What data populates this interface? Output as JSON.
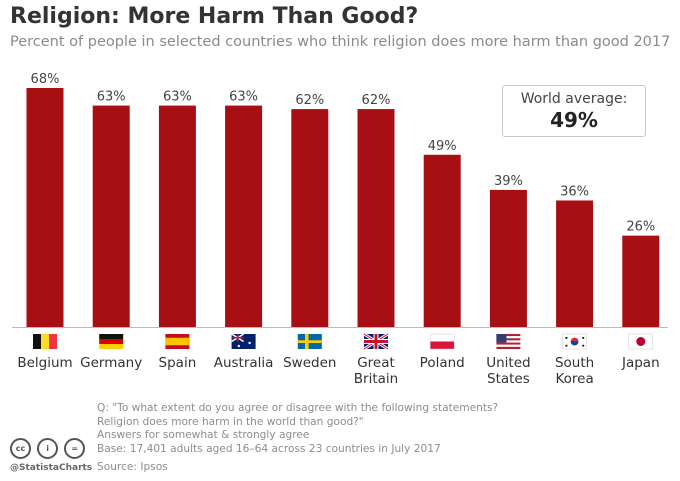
{
  "title": "Religion: More Harm Than Good?",
  "subtitle": "Percent of people in selected countries who think religion does more harm than good 2017",
  "chart_data": {
    "type": "bar",
    "title": "Religion: More Harm Than Good?",
    "subtitle": "Percent of people in selected countries who think religion does more harm than good 2017",
    "categories": [
      {
        "name": "Belgium",
        "label_lines": [
          "Belgium"
        ],
        "flag": "belgium-flag"
      },
      {
        "name": "Germany",
        "label_lines": [
          "Germany"
        ],
        "flag": "germany-flag"
      },
      {
        "name": "Spain",
        "label_lines": [
          "Spain"
        ],
        "flag": "spain-flag"
      },
      {
        "name": "Australia",
        "label_lines": [
          "Australia"
        ],
        "flag": "australia-flag"
      },
      {
        "name": "Sweden",
        "label_lines": [
          "Sweden"
        ],
        "flag": "sweden-flag"
      },
      {
        "name": "Great Britain",
        "label_lines": [
          "Great",
          "Britain"
        ],
        "flag": "uk-flag"
      },
      {
        "name": "Poland",
        "label_lines": [
          "Poland"
        ],
        "flag": "poland-flag"
      },
      {
        "name": "United States",
        "label_lines": [
          "United",
          "States"
        ],
        "flag": "us-flag"
      },
      {
        "name": "South Korea",
        "label_lines": [
          "South",
          "Korea"
        ],
        "flag": "south-korea-flag"
      },
      {
        "name": "Japan",
        "label_lines": [
          "Japan"
        ],
        "flag": "japan-flag"
      }
    ],
    "values": [
      68,
      63,
      63,
      63,
      62,
      62,
      49,
      39,
      36,
      26
    ],
    "value_labels": [
      "68%",
      "63%",
      "63%",
      "63%",
      "62%",
      "62%",
      "49%",
      "39%",
      "36%",
      "26%"
    ],
    "ylim": [
      0,
      72
    ],
    "xlabel": "",
    "ylabel": "",
    "grid": false,
    "bar_color": "#a80f14"
  },
  "world_average": {
    "label": "World average:",
    "value": "49%"
  },
  "notes": [
    "Q: \"To what extent do you agree or disagree with the following statements?",
    "Religion does more harm in the world than good?\"",
    "Answers for somewhat & strongly agree",
    "Base: 17,401 adults aged 16–64 across 23 countries in July 2017"
  ],
  "source": "Source: Ipsos",
  "brand": "@StatistaCharts",
  "license_icons": [
    {
      "name": "cc-icon",
      "text": "cc"
    },
    {
      "name": "by-icon",
      "text": "i"
    },
    {
      "name": "nd-icon",
      "text": "="
    }
  ]
}
